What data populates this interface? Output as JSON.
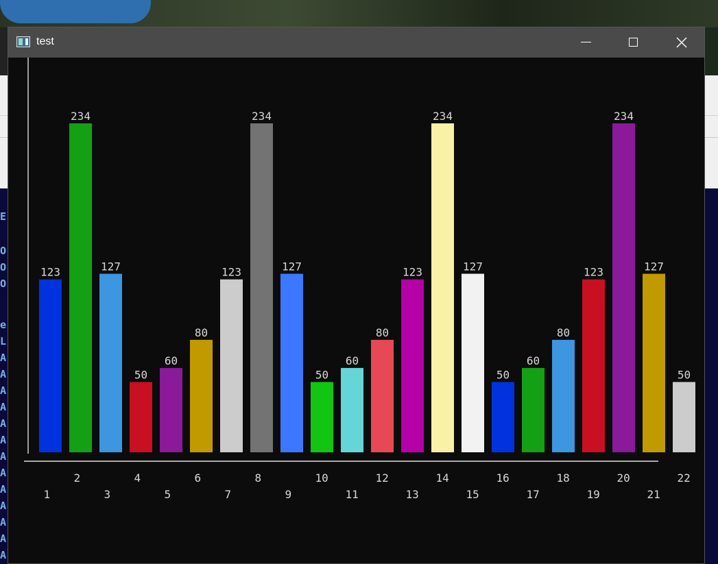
{
  "window": {
    "title": "test",
    "controls": {
      "minimize": "minimize",
      "maximize": "maximize",
      "close": "close"
    }
  },
  "background": {
    "console_fragments": [
      "E",
      "O",
      "O",
      "O",
      "e",
      "L",
      "A",
      "A",
      "A",
      "A",
      "A",
      "A",
      "A",
      "A",
      "A",
      "A",
      "A",
      "A",
      "A",
      "A",
      "A"
    ]
  },
  "chart_data": {
    "type": "bar",
    "title": "",
    "xlabel": "",
    "ylabel": "",
    "ylim": [
      0,
      234
    ],
    "categories": [
      "1",
      "2",
      "3",
      "4",
      "5",
      "6",
      "7",
      "8",
      "9",
      "10",
      "11",
      "12",
      "13",
      "14",
      "15",
      "16",
      "17",
      "18",
      "19",
      "20",
      "21",
      "22"
    ],
    "values": [
      123,
      234,
      127,
      50,
      60,
      80,
      123,
      234,
      127,
      50,
      60,
      80,
      123,
      234,
      127,
      50,
      60,
      80,
      123,
      234,
      127,
      50
    ],
    "colors": [
      "#0033dd",
      "#14a014",
      "#3c96e0",
      "#c81022",
      "#8a1a9a",
      "#c19a00",
      "#cccccc",
      "#737373",
      "#3c78ff",
      "#12c512",
      "#64d6d8",
      "#e74856",
      "#b400a6",
      "#f9f1a5",
      "#f2f2f2",
      "#0033dd",
      "#14a014",
      "#3c96e0",
      "#c81022",
      "#8a1a9a",
      "#c19a00",
      "#cccccc"
    ],
    "data_labels": true,
    "grid": false,
    "legend": "none"
  }
}
